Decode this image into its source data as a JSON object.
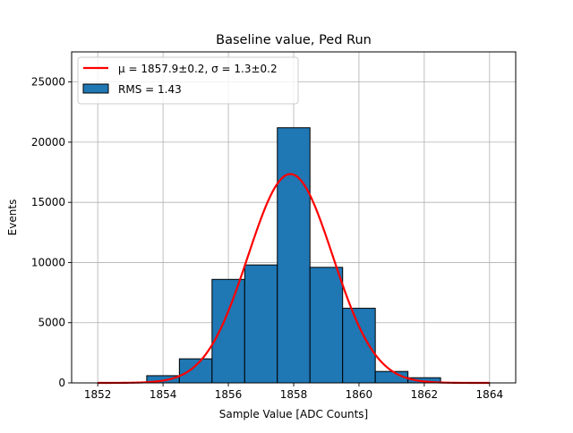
{
  "chart_data": {
    "type": "bar",
    "title": "Baseline value, Ped Run",
    "xlabel": "Sample Value [ADC Counts]",
    "ylabel": "Events",
    "xlim": [
      1851.2,
      1864.8
    ],
    "ylim": [
      0,
      27500
    ],
    "xticks": [
      1852,
      1854,
      1856,
      1858,
      1860,
      1862,
      1864
    ],
    "yticks": [
      0,
      5000,
      10000,
      15000,
      20000,
      25000
    ],
    "grid": true,
    "legend_position": "top-left",
    "histogram": {
      "name": "RMS = 1.43",
      "color": "#1f77b4",
      "edgecolor": "#000000",
      "bins": [
        {
          "x0": 1853.5,
          "x1": 1854.5,
          "value": 600
        },
        {
          "x0": 1854.5,
          "x1": 1855.5,
          "value": 2000
        },
        {
          "x0": 1855.5,
          "x1": 1856.5,
          "value": 8600
        },
        {
          "x0": 1856.5,
          "x1": 1857.5,
          "value": 9800
        },
        {
          "x0": 1857.5,
          "x1": 1858.5,
          "value": 21200
        },
        {
          "x0": 1858.5,
          "x1": 1859.5,
          "value": 9600
        },
        {
          "x0": 1859.5,
          "x1": 1860.5,
          "value": 6200
        },
        {
          "x0": 1860.5,
          "x1": 1861.5,
          "value": 950
        },
        {
          "x0": 1861.5,
          "x1": 1862.5,
          "value": 430
        }
      ]
    },
    "fit": {
      "type": "gaussian",
      "color": "#ff0000",
      "label_prefix": "μ = 1857.9±0.2, ",
      "label_sigma": "σ = 1.3±0.2",
      "mu": 1857.9,
      "sigma": 1.3,
      "amplitude": 17350,
      "x_range": [
        1852,
        1864
      ]
    }
  }
}
